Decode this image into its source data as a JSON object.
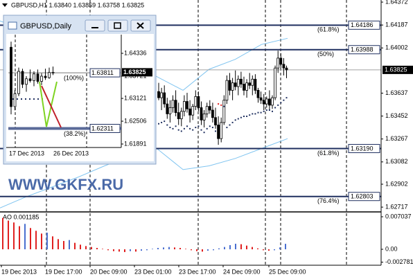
{
  "main_chart": {
    "title": "GBPUSD,H1 1.63840 1.63859 1.63758 1.63825",
    "ylim": [
      1.62684,
      1.64389
    ],
    "price_ticks": [
      1.64372,
      1.64187,
      1.64002,
      1.63637,
      1.63452,
      1.63267,
      1.63082,
      1.62902,
      1.62717
    ],
    "current_price": 1.63825,
    "levels": [
      {
        "price": 1.64186,
        "fib": "(61.8%)"
      },
      {
        "price": 1.63988,
        "fib": "(50%)"
      },
      {
        "price": {
          "value": 1.6319,
          "label": "1.63190"
        },
        "fib": "(61.8%)"
      },
      {
        "price": 1.62803,
        "fib": "(76.4%)"
      }
    ],
    "candles": {
      "open": [
        1.6365,
        1.636,
        1.6364,
        1.6355,
        1.6347,
        1.6352,
        1.6358,
        1.6348,
        1.6343,
        1.6349,
        1.6357,
        1.6351,
        1.6346,
        1.6353,
        1.6361,
        1.6352,
        1.6342,
        1.6347,
        1.6353,
        1.635,
        1.6344,
        1.6338,
        1.6327,
        1.634,
        1.6358,
        1.6374,
        1.6366,
        1.6372,
        1.6369,
        1.6375,
        1.6371,
        1.6366,
        1.6372,
        1.637,
        1.6375,
        1.6366,
        1.636,
        1.6358,
        1.6355,
        1.6359,
        1.6354,
        1.636,
        1.6384,
        1.6392,
        1.6387,
        1.6384
      ],
      "high": [
        1.6372,
        1.6368,
        1.637,
        1.636,
        1.6358,
        1.6362,
        1.6366,
        1.6356,
        1.6352,
        1.6362,
        1.6364,
        1.6358,
        1.6355,
        1.6366,
        1.6365,
        1.6357,
        1.635,
        1.6356,
        1.6358,
        1.6356,
        1.6352,
        1.6345,
        1.6344,
        1.6362,
        1.6378,
        1.638,
        1.6376,
        1.6382,
        1.6378,
        1.6381,
        1.6377,
        1.6375,
        1.638,
        1.6378,
        1.6379,
        1.6368,
        1.6365,
        1.6363,
        1.6361,
        1.6366,
        1.6362,
        1.6386,
        1.6398,
        1.6396,
        1.6392,
        1.63859
      ],
      "low": [
        1.6358,
        1.635,
        1.6352,
        1.6343,
        1.634,
        1.6348,
        1.6345,
        1.6338,
        1.6337,
        1.6345,
        1.6348,
        1.634,
        1.6342,
        1.635,
        1.6349,
        1.6338,
        1.6336,
        1.6344,
        1.6347,
        1.634,
        1.6335,
        1.6322,
        1.6324,
        1.6338,
        1.6355,
        1.6362,
        1.6358,
        1.6366,
        1.6362,
        1.6368,
        1.6362,
        1.636,
        1.6367,
        1.6362,
        1.6363,
        1.6356,
        1.6355,
        1.635,
        1.6352,
        1.635,
        1.6351,
        1.6358,
        1.638,
        1.6384,
        1.6378,
        1.63758
      ],
      "close": [
        1.636,
        1.6364,
        1.6355,
        1.6347,
        1.6352,
        1.6358,
        1.6348,
        1.6343,
        1.6349,
        1.6357,
        1.6351,
        1.6346,
        1.6353,
        1.6361,
        1.6352,
        1.6342,
        1.6347,
        1.6353,
        1.635,
        1.6344,
        1.6338,
        1.6327,
        1.634,
        1.6358,
        1.6374,
        1.6366,
        1.6372,
        1.6369,
        1.6375,
        1.6371,
        1.6366,
        1.6372,
        1.637,
        1.6375,
        1.6366,
        1.636,
        1.6358,
        1.6355,
        1.6359,
        1.6354,
        1.636,
        1.6384,
        1.6392,
        1.6387,
        1.6384,
        1.63825
      ]
    },
    "sar": [
      1.6339,
      1.634,
      1.6341,
      1.6338,
      1.6336,
      1.6335,
      1.6337,
      1.6334,
      1.6333,
      1.6335,
      1.6337,
      1.6335,
      1.6334,
      1.6336,
      1.6337,
      1.6334,
      1.6332,
      1.6335,
      1.6337,
      1.6336,
      1.6333,
      1.6355,
      1.6354,
      1.6353,
      1.6336,
      1.6338,
      1.634,
      1.6342,
      1.6343,
      1.6344,
      1.6345,
      1.6345,
      1.6346,
      1.6347,
      1.6347,
      1.6348,
      1.6348,
      1.6349,
      1.635,
      1.635,
      1.6349,
      1.6352,
      1.6354,
      1.6356,
      1.6358,
      1.636
    ],
    "upper_band": [
      1.6422,
      1.6414,
      1.6405,
      1.6397,
      1.6391,
      1.6386,
      1.6377,
      1.6366,
      1.6383,
      1.6391,
      1.6403,
      1.6408
    ],
    "lower_band": [
      1.6271,
      1.628,
      1.6288,
      1.6296,
      1.6305,
      1.6313,
      1.6319,
      1.6302,
      1.6305,
      1.6311,
      1.6319,
      1.6327
    ],
    "colors": {
      "level": "#1f2f5f",
      "band": "#7fc4f0",
      "sar_below": "#1f2f5f",
      "sar_above": "#e02020",
      "current": "#a0a0a0"
    }
  },
  "ao": {
    "label": "AO 0.001185",
    "ylim": [
      -0.003444,
      0.007935
    ],
    "ticks": [
      0.007037,
      {
        "value": 0,
        "label": "0.00"
      },
      -0.002781
    ],
    "values": [
      0.0068,
      0.0062,
      0.0058,
      0.005,
      0.0055,
      0.0046,
      0.004,
      0.0034,
      0.0036,
      0.0028,
      0.0022,
      0.0018,
      0.002,
      0.0014,
      0.001,
      0.0007,
      0.0005,
      0.0003,
      0.0001,
      -0.0002,
      -0.0004,
      -0.0005,
      -0.0006,
      -0.0004,
      -0.0005,
      -0.0003,
      -0.0002,
      0.0001,
      0.0003,
      0.0004,
      0.0005,
      0.0004,
      0.0003,
      0.0001,
      -0.0002,
      -0.0004,
      -0.0005,
      -0.0003,
      -0.0002,
      0.0002,
      0.0005,
      0.0009,
      0.0012,
      0.0011,
      0.0008,
      0.0005,
      0.0002,
      -0.0002,
      -0.0003,
      -0.0002,
      0.0004,
      0.001185
    ],
    "colors": {
      "up": "#4a6fd0",
      "down": "#e02020"
    }
  },
  "time_labels": [
    "19 Dec 2013",
    "19 Dec 17:00",
    "20 Dec 09:00",
    "23 Dec 01:00",
    "23 Dec 17:00",
    "24 Dec 09:00",
    "25 Dec 09:00"
  ],
  "watermark": "WWW.GKFX.RU",
  "daily_window": {
    "title": "GBPUSD,Daily",
    "ylim": [
      1.61816,
      1.6484
    ],
    "price_ticks": [
      1.64336,
      1.63721,
      1.63121,
      1.62506,
      1.61891
    ],
    "current_price": 1.63825,
    "levels": [
      {
        "price": 1.63811,
        "fib": "(100%)"
      },
      {
        "price": 1.62311,
        "fib": "(38.2%)"
      }
    ],
    "candles": {
      "open": [
        1.645,
        1.629,
        1.6325,
        1.6385,
        1.635,
        1.6365,
        1.636,
        1.6378,
        1.6358,
        1.6372,
        1.6368,
        1.6382
      ],
      "high": [
        1.6465,
        1.6335,
        1.6395,
        1.6392,
        1.6372,
        1.639,
        1.6385,
        1.639,
        1.638,
        1.6392,
        1.6395,
        1.6398
      ],
      "low": [
        1.6269,
        1.628,
        1.6318,
        1.634,
        1.633,
        1.6355,
        1.6345,
        1.6352,
        1.6348,
        1.6362,
        1.6365,
        1.6375
      ],
      "close": [
        1.629,
        1.6325,
        1.6385,
        1.635,
        1.6365,
        1.636,
        1.6378,
        1.6358,
        1.6372,
        1.6368,
        1.6382,
        1.63825
      ]
    },
    "dates": [
      "17 Dec 2013",
      "26 Dec 2013"
    ]
  }
}
